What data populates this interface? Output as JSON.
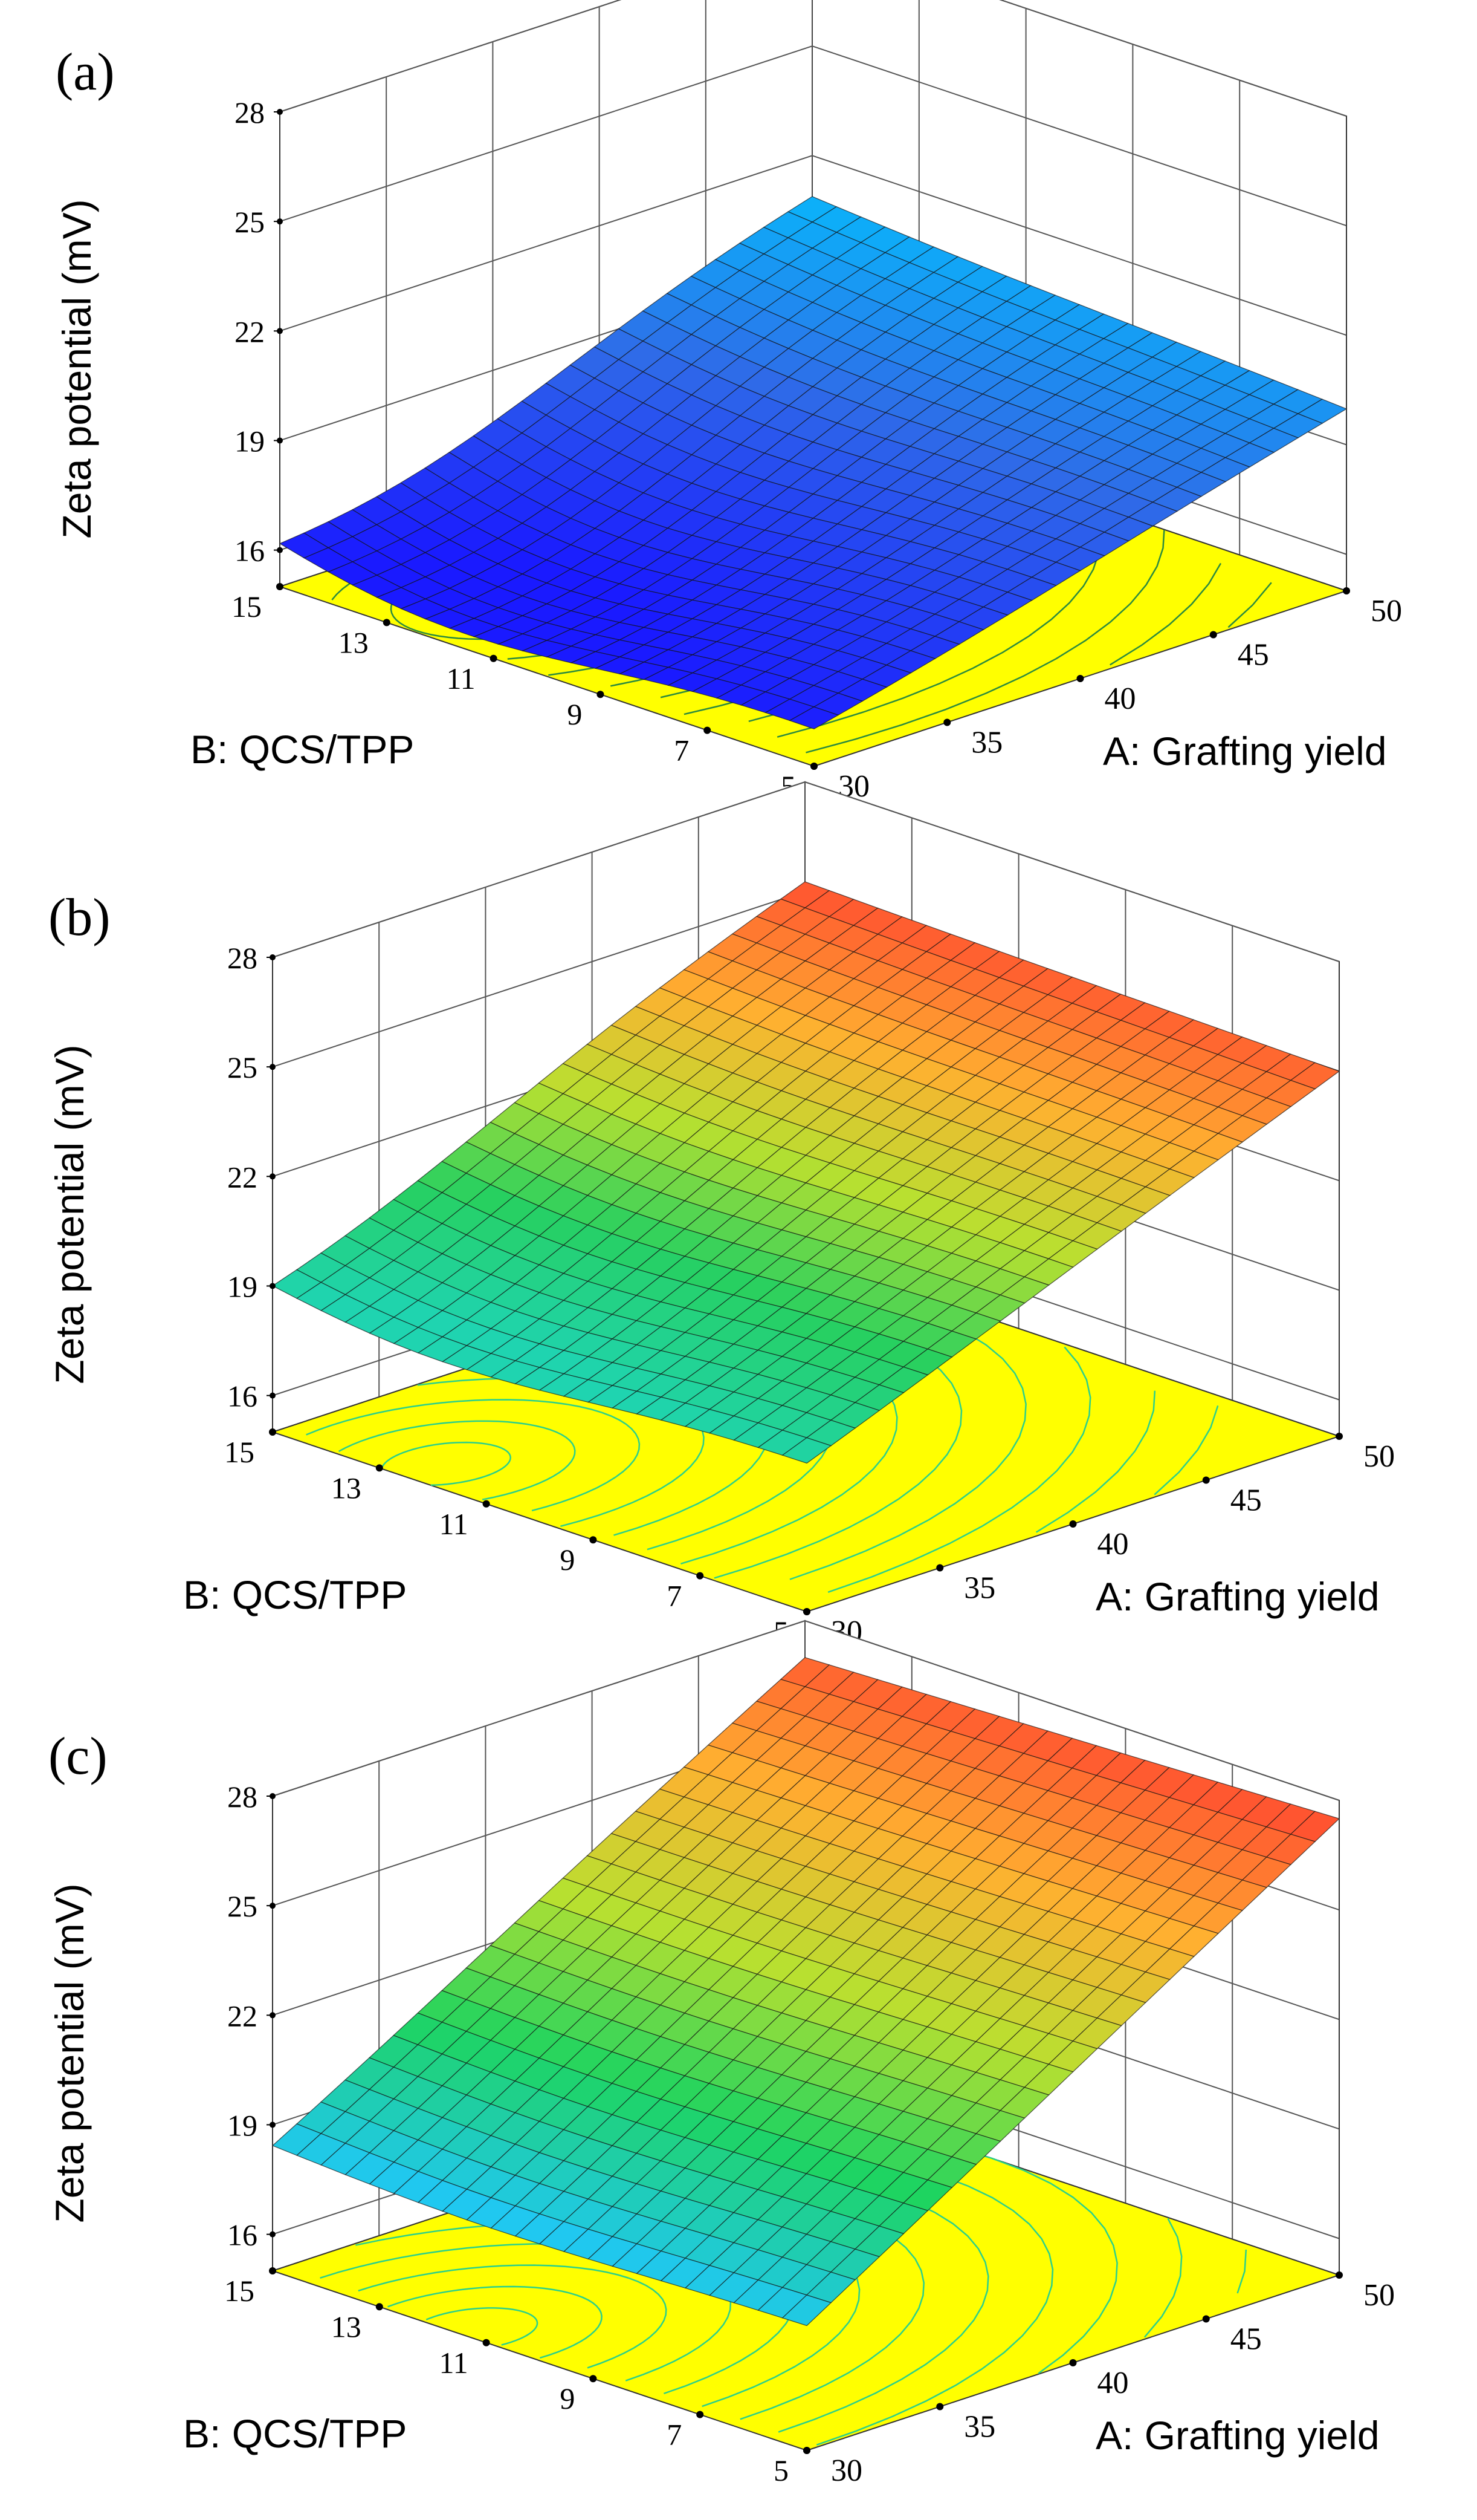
{
  "figure": {
    "background": "#ffffff"
  },
  "chart_data": [
    {
      "type": "surface3d",
      "panel_label": "(a)",
      "zlabel": "Zeta potential (mV)",
      "xlabel": "A: Grafting yield",
      "ylabel": "B: QCS/TPP",
      "zticks": [
        "28",
        "25",
        "22",
        "19",
        "16"
      ],
      "zlim": [
        15,
        28
      ],
      "xticks": [
        "30",
        "35",
        "40",
        "45",
        "50"
      ],
      "xlim": [
        30,
        50
      ],
      "yticks": [
        "5",
        "7",
        "9",
        "11",
        "13",
        "15"
      ],
      "ylim": [
        5,
        15
      ],
      "surface_corners": {
        "A30_B15": 17.5,
        "A50_B15": 21.0,
        "A30_B5": 16.2,
        "A50_B5": 20.0,
        "min_A": 34.0,
        "min_B": 12.5,
        "min_z": 15.9
      },
      "z_range_shown": [
        15.9,
        21.5
      ],
      "colormap": [
        "#1a1aff",
        "#2f6be8",
        "#00c8ff"
      ],
      "contour_base_color": "#ffff00",
      "contour_line_color": "#2b8a3e",
      "grid": true
    },
    {
      "type": "surface3d",
      "panel_label": "(b)",
      "zlabel": "Zeta potential (mV)",
      "xlabel": "A: Grafting yield",
      "ylabel": "B: QCS/TPP",
      "zticks": [
        "28",
        "25",
        "22",
        "19",
        "16"
      ],
      "zlim": [
        15,
        28
      ],
      "xticks": [
        "30",
        "35",
        "40",
        "45",
        "50"
      ],
      "xlim": [
        30,
        50
      ],
      "yticks": [
        "5",
        "7",
        "9",
        "11",
        "13",
        "15"
      ],
      "ylim": [
        5,
        15
      ],
      "surface_corners": {
        "A30_B15": 20.0,
        "A50_B15": 25.3,
        "A30_B5": 19.2,
        "A50_B5": 25.0,
        "min_A": 31.5,
        "min_B": 12.5,
        "min_z": 18.9
      },
      "z_range_shown": [
        18.9,
        25.3
      ],
      "colormap": [
        "#1fd4b0",
        "#27d060",
        "#b8e030",
        "#ffb030",
        "#ff5030"
      ],
      "contour_base_color": "#ffff00",
      "contour_line_color": "#2bd08a",
      "grid": true
    },
    {
      "type": "surface3d",
      "panel_label": "(c)",
      "zlabel": "Zeta potential (mV)",
      "xlabel": "A: Grafting yield",
      "ylabel": "B: QCS/TPP",
      "zticks": [
        "28",
        "25",
        "22",
        "19",
        "16"
      ],
      "zlim": [
        15,
        28
      ],
      "xticks": [
        "30",
        "35",
        "40",
        "45",
        "50"
      ],
      "xlim": [
        30,
        50
      ],
      "yticks": [
        "5",
        "7",
        "9",
        "11",
        "13",
        "15"
      ],
      "ylim": [
        5,
        15
      ],
      "surface_corners": {
        "A30_B15": 18.7,
        "A50_B15": 27.0,
        "A30_B5": 18.5,
        "A50_B5": 27.5,
        "min_A": 30.5,
        "min_B": 11.5,
        "min_z": 18.4
      },
      "z_range_shown": [
        18.4,
        27.5
      ],
      "colormap": [
        "#20c8f0",
        "#1ed460",
        "#b8e030",
        "#ffb030",
        "#ff4a30"
      ],
      "contour_base_color": "#ffff00",
      "contour_line_color": "#2bd08a",
      "grid": true
    }
  ]
}
